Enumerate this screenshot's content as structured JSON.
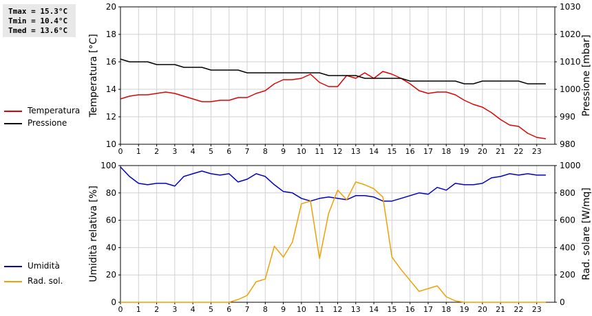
{
  "stats": {
    "tmax": "Tmax = 15.3°C",
    "tmin": "Tmin = 10.4°C",
    "tmed": "Tmed = 13.6°C"
  },
  "legend_top": [
    {
      "label": "Temperatura",
      "color": "#e00000"
    },
    {
      "label": "Pressione",
      "color": "#000000"
    }
  ],
  "legend_bottom": [
    {
      "label": "Umidità",
      "color": "#0000c0"
    },
    {
      "label": "Rad. sol.",
      "color": "#f0a000"
    }
  ],
  "chart_data": [
    {
      "type": "line",
      "xlabel": "",
      "ylabel": "Temperatura [°C]",
      "y2label": "Pressione [mbar]",
      "xlim": [
        0,
        24
      ],
      "ylim": [
        10,
        20
      ],
      "y2lim": [
        980,
        1030
      ],
      "x_ticks": [
        "0",
        "1",
        "2",
        "3",
        "4",
        "5",
        "6",
        "7",
        "8",
        "9",
        "10",
        "11",
        "12",
        "13",
        "14",
        "15",
        "16",
        "17",
        "18",
        "19",
        "20",
        "21",
        "22",
        "23"
      ],
      "y_ticks": [
        "10",
        "12",
        "14",
        "16",
        "18",
        "20"
      ],
      "y2_ticks": [
        "980",
        "990",
        "1000",
        "1010",
        "1020",
        "1030"
      ],
      "grid": true,
      "series": [
        {
          "name": "Temperatura",
          "axis": "left",
          "color": "#e00000",
          "x": [
            0,
            0.5,
            1,
            1.5,
            2,
            2.5,
            3,
            3.5,
            4,
            4.5,
            5,
            5.5,
            6,
            6.5,
            7,
            7.5,
            8,
            8.5,
            9,
            9.5,
            10,
            10.5,
            11,
            11.5,
            12,
            12.5,
            13,
            13.5,
            14,
            14.5,
            15,
            15.5,
            16,
            16.5,
            17,
            17.5,
            18,
            18.5,
            19,
            19.5,
            20,
            20.5,
            21,
            21.5,
            22,
            22.5,
            23,
            23.5
          ],
          "y": [
            13.3,
            13.5,
            13.6,
            13.6,
            13.7,
            13.8,
            13.7,
            13.5,
            13.3,
            13.1,
            13.1,
            13.2,
            13.2,
            13.4,
            13.4,
            13.7,
            13.9,
            14.4,
            14.7,
            14.7,
            14.8,
            15.1,
            14.5,
            14.2,
            14.2,
            15.0,
            14.8,
            15.2,
            14.8,
            15.3,
            15.1,
            14.8,
            14.4,
            13.9,
            13.7,
            13.8,
            13.8,
            13.6,
            13.2,
            12.9,
            12.7,
            12.3,
            11.8,
            11.4,
            11.3,
            10.8,
            10.5,
            10.4
          ]
        },
        {
          "name": "Pressione",
          "axis": "right",
          "color": "#000000",
          "x": [
            0,
            0.5,
            1,
            1.5,
            2,
            2.5,
            3,
            3.5,
            4,
            4.5,
            5,
            5.5,
            6,
            6.5,
            7,
            7.5,
            8,
            8.5,
            9,
            9.5,
            10,
            10.5,
            11,
            11.5,
            12,
            12.5,
            13,
            13.5,
            14,
            14.5,
            15,
            15.5,
            16,
            16.5,
            17,
            17.5,
            18,
            18.5,
            19,
            19.5,
            20,
            20.5,
            21,
            21.5,
            22,
            22.5,
            23,
            23.5
          ],
          "y": [
            1011,
            1010,
            1010,
            1010,
            1009,
            1009,
            1009,
            1008,
            1008,
            1008,
            1007,
            1007,
            1007,
            1007,
            1006,
            1006,
            1006,
            1006,
            1006,
            1006,
            1006,
            1006,
            1006,
            1005,
            1005,
            1005,
            1005,
            1004,
            1004,
            1004,
            1004,
            1004,
            1003,
            1003,
            1003,
            1003,
            1003,
            1003,
            1002,
            1002,
            1003,
            1003,
            1003,
            1003,
            1003,
            1002,
            1002,
            1002
          ]
        }
      ]
    },
    {
      "type": "line",
      "xlabel": "",
      "ylabel": "Umidità relativa [%]",
      "y2label": "Rad. solare [W/mq]",
      "xlim": [
        0,
        24
      ],
      "ylim": [
        0,
        100
      ],
      "y2lim": [
        0,
        1000
      ],
      "x_ticks": [
        "0",
        "1",
        "2",
        "3",
        "4",
        "5",
        "6",
        "7",
        "8",
        "9",
        "10",
        "11",
        "12",
        "13",
        "14",
        "15",
        "16",
        "17",
        "18",
        "19",
        "20",
        "21",
        "22",
        "23"
      ],
      "y_ticks": [
        "0",
        "20",
        "40",
        "60",
        "80",
        "100"
      ],
      "y2_ticks": [
        "0",
        "200",
        "400",
        "600",
        "800",
        "1000"
      ],
      "grid": true,
      "series": [
        {
          "name": "Umidità",
          "axis": "left",
          "color": "#0000c0",
          "x": [
            0,
            0.5,
            1,
            1.5,
            2,
            2.5,
            3,
            3.5,
            4,
            4.5,
            5,
            5.5,
            6,
            6.5,
            7,
            7.5,
            8,
            8.5,
            9,
            9.5,
            10,
            10.5,
            11,
            11.5,
            12,
            12.5,
            13,
            13.5,
            14,
            14.5,
            15,
            15.5,
            16,
            16.5,
            17,
            17.5,
            18,
            18.5,
            19,
            19.5,
            20,
            20.5,
            21,
            21.5,
            22,
            22.5,
            23,
            23.5
          ],
          "y": [
            99,
            92,
            87,
            86,
            87,
            87,
            85,
            92,
            94,
            96,
            94,
            93,
            94,
            88,
            90,
            94,
            92,
            86,
            81,
            80,
            76,
            74,
            76,
            77,
            76,
            75,
            78,
            78,
            77,
            74,
            74,
            76,
            78,
            80,
            79,
            84,
            82,
            87,
            86,
            86,
            87,
            91,
            92,
            94,
            93,
            94,
            93,
            93
          ]
        },
        {
          "name": "Rad. sol.",
          "axis": "right",
          "color": "#f0a000",
          "x": [
            0,
            0.5,
            1,
            1.5,
            2,
            2.5,
            3,
            3.5,
            4,
            4.5,
            5,
            5.5,
            6,
            6.5,
            7,
            7.5,
            8,
            8.5,
            9,
            9.5,
            10,
            10.5,
            11,
            11.5,
            12,
            12.5,
            13,
            13.5,
            14,
            14.5,
            15,
            15.5,
            16,
            16.5,
            17,
            17.5,
            18,
            18.5,
            19,
            19.5,
            20,
            20.5,
            21,
            21.5,
            22,
            22.5,
            23,
            23.5
          ],
          "y": [
            0,
            0,
            0,
            0,
            0,
            0,
            0,
            0,
            0,
            0,
            0,
            0,
            0,
            20,
            50,
            150,
            170,
            410,
            330,
            440,
            720,
            740,
            320,
            650,
            820,
            750,
            880,
            860,
            830,
            770,
            330,
            240,
            160,
            80,
            100,
            120,
            40,
            10,
            0,
            0,
            0,
            0,
            0,
            0,
            0,
            0,
            0,
            0
          ]
        }
      ]
    }
  ]
}
